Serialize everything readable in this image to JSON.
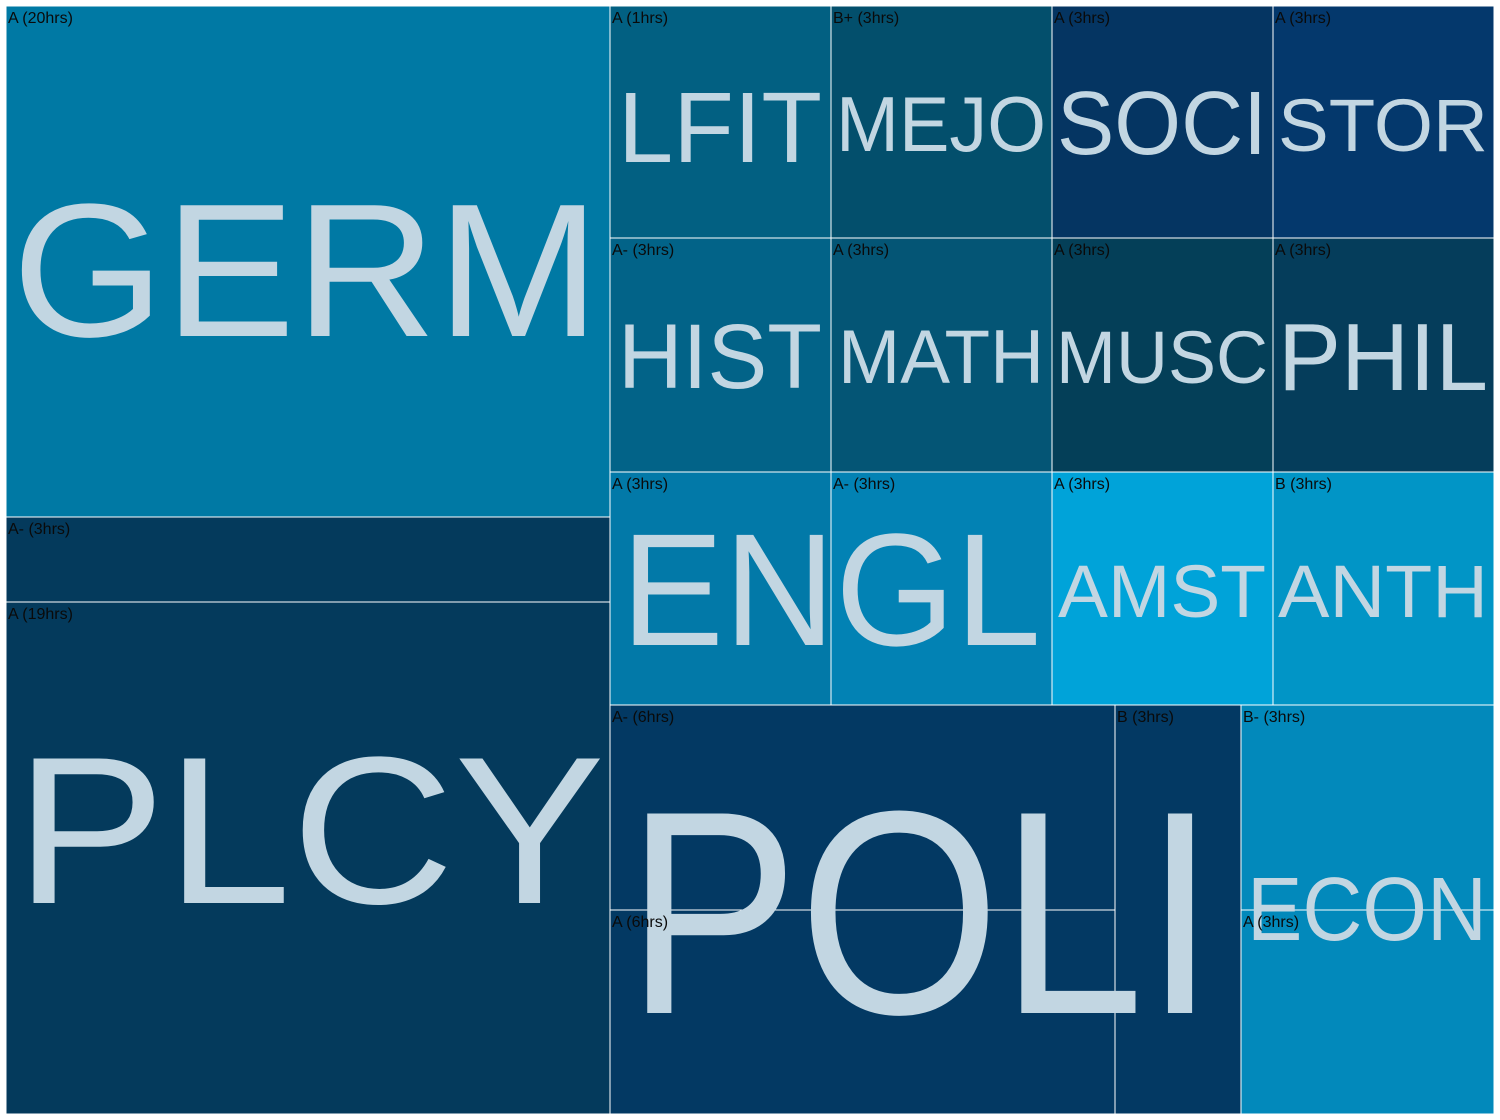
{
  "chart_data": {
    "type": "treemap",
    "title": "",
    "value_unit": "hrs",
    "groups": [
      {
        "subject": "GERM",
        "color": "#0079a4",
        "label_color": "#b5d9e6",
        "courses": [
          {
            "grade": "A",
            "hours": 20,
            "label": "A (20hrs)",
            "color": "#0079a4"
          }
        ]
      },
      {
        "subject": "PLCY",
        "color": "#043a5c",
        "label_color": "#b8c9d5",
        "courses": [
          {
            "grade": "A-",
            "hours": 3,
            "label": "A- (3hrs)",
            "color": "#043a5c"
          },
          {
            "grade": "A",
            "hours": 19,
            "label": "A (19hrs)",
            "color": "#043a5c"
          }
        ]
      },
      {
        "subject": "LFIT",
        "color": "#026082",
        "label_color": "#b5d2de",
        "courses": [
          {
            "grade": "A",
            "hours": 1,
            "label": "A (1hrs)",
            "color": "#026082"
          }
        ]
      },
      {
        "subject": "MEJO",
        "color": "#034f6c",
        "label_color": "#b7ced9",
        "courses": [
          {
            "grade": "B+",
            "hours": 3,
            "label": "B+ (3hrs)",
            "color": "#034f6c"
          }
        ]
      },
      {
        "subject": "SOCI",
        "color": "#053562",
        "label_color": "#b8c6d6",
        "courses": [
          {
            "grade": "A",
            "hours": 3,
            "label": "A (3hrs)",
            "color": "#053562"
          }
        ]
      },
      {
        "subject": "STOR",
        "color": "#04386c",
        "label_color": "#b8c8d9",
        "courses": [
          {
            "grade": "A",
            "hours": 3,
            "label": "A (3hrs)",
            "color": "#04386c"
          }
        ]
      },
      {
        "subject": "HIST",
        "color": "#026388",
        "label_color": "#b5d3df",
        "courses": [
          {
            "grade": "A-",
            "hours": 3,
            "label": "A- (3hrs)",
            "color": "#026388"
          }
        ]
      },
      {
        "subject": "MATH",
        "color": "#045575",
        "label_color": "#b7d0dc",
        "courses": [
          {
            "grade": "A",
            "hours": 3,
            "label": "A (3hrs)",
            "color": "#045575"
          }
        ]
      },
      {
        "subject": "MUSC",
        "color": "#043f58",
        "label_color": "#b8cbd5",
        "courses": [
          {
            "grade": "A",
            "hours": 3,
            "label": "A (3hrs)",
            "color": "#043f58"
          }
        ]
      },
      {
        "subject": "PHIL",
        "color": "#053d5b",
        "label_color": "#b8cad5",
        "courses": [
          {
            "grade": "A",
            "hours": 3,
            "label": "A (3hrs)",
            "color": "#053d5b"
          }
        ]
      },
      {
        "subject": "ENGL",
        "color": "#0282b4",
        "label_color": "#b4dbea",
        "courses": [
          {
            "grade": "A",
            "hours": 3,
            "label": "A (3hrs)",
            "color": "#0279a8"
          },
          {
            "grade": "A-",
            "hours": 3,
            "label": "A- (3hrs)",
            "color": "#0282b4"
          }
        ]
      },
      {
        "subject": "AMST",
        "color": "#00a3d9",
        "label_color": "#b3e3f3",
        "courses": [
          {
            "grade": "A",
            "hours": 3,
            "label": "A (3hrs)",
            "color": "#00a3d9"
          }
        ]
      },
      {
        "subject": "ANTH",
        "color": "#0195c6",
        "label_color": "#b3dfef",
        "courses": [
          {
            "grade": "B",
            "hours": 3,
            "label": "B (3hrs)",
            "color": "#0195c6"
          }
        ]
      },
      {
        "subject": "POLI",
        "color": "#033963",
        "label_color": "#b8c6d3",
        "courses": [
          {
            "grade": "A-",
            "hours": 6,
            "label": "A- (6hrs)",
            "color": "#033963"
          },
          {
            "grade": "A",
            "hours": 6,
            "label": "A (6hrs)",
            "color": "#033963"
          },
          {
            "grade": "B",
            "hours": 3,
            "label": "B (3hrs)",
            "color": "#033963"
          }
        ]
      },
      {
        "subject": "ECON",
        "color": "#0289bb",
        "label_color": "#b4dded",
        "courses": [
          {
            "grade": "B-",
            "hours": 3,
            "label": "B- (3hrs)",
            "color": "#0289bb"
          },
          {
            "grade": "A",
            "hours": 3,
            "label": "A (3hrs)",
            "color": "#0289bb"
          }
        ]
      }
    ]
  }
}
